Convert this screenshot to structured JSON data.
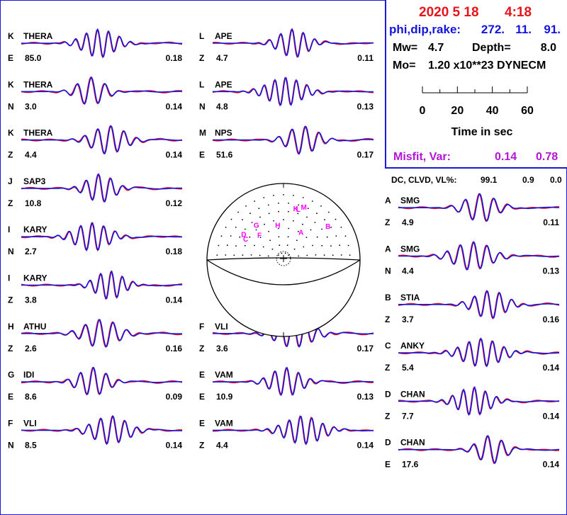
{
  "header": {
    "date": "2020  5 18",
    "time": "4:18",
    "mechanism_label": "phi,dip,rake:",
    "phi": "272.",
    "dip": "11.",
    "rake": "91.",
    "mw_label": "Mw=",
    "mw": "4.7",
    "depth_label": "Depth=",
    "depth": "8.0",
    "mo_label": "Mo=",
    "mo": "1.20 x10**23 DYNECM",
    "time_axis_label": "Time  in sec",
    "time_ticks": [
      "0",
      "20",
      "40",
      "60"
    ],
    "misfit_label": "Misfit, Var:",
    "misfit": "0.14",
    "var": "0.78",
    "dc_label": "DC, CLVD, VL%:",
    "dc": "99.1",
    "clvd": "0.9",
    "vl": "0.0"
  },
  "colors": {
    "observed": "#e8141c",
    "synthetic": "#1414e0",
    "date": "#e8141c",
    "mech": "#1414e0",
    "misfit": "#b414d8",
    "station_marker": "#ff00ff"
  },
  "traces": [
    {
      "code": "K",
      "station": "THERA",
      "comp": "E",
      "distance": "85.0",
      "amp": "0.18",
      "col": 0,
      "row": 0
    },
    {
      "code": "K",
      "station": "THERA",
      "comp": "N",
      "distance": "3.0",
      "amp": "0.14",
      "col": 0,
      "row": 1
    },
    {
      "code": "K",
      "station": "THERA",
      "comp": "Z",
      "distance": "4.4",
      "amp": "0.14",
      "col": 0,
      "row": 2
    },
    {
      "code": "J",
      "station": "SAP3",
      "comp": "Z",
      "distance": "10.8",
      "amp": "0.12",
      "col": 0,
      "row": 3
    },
    {
      "code": "I",
      "station": "KARY",
      "comp": "N",
      "distance": "2.7",
      "amp": "0.18",
      "col": 0,
      "row": 4
    },
    {
      "code": "I",
      "station": "KARY",
      "comp": "Z",
      "distance": "3.8",
      "amp": "0.14",
      "col": 0,
      "row": 5
    },
    {
      "code": "H",
      "station": "ATHU",
      "comp": "Z",
      "distance": "2.6",
      "amp": "0.16",
      "col": 0,
      "row": 6
    },
    {
      "code": "G",
      "station": "IDI",
      "comp": "E",
      "distance": "8.6",
      "amp": "0.09",
      "col": 0,
      "row": 7
    },
    {
      "code": "F",
      "station": "VLI",
      "comp": "N",
      "distance": "8.5",
      "amp": "0.14",
      "col": 0,
      "row": 8
    },
    {
      "code": "L",
      "station": "APE",
      "comp": "Z",
      "distance": "4.7",
      "amp": "0.11",
      "col": 1,
      "row": 0
    },
    {
      "code": "L",
      "station": "APE",
      "comp": "N",
      "distance": "4.8",
      "amp": "0.13",
      "col": 1,
      "row": 1
    },
    {
      "code": "M",
      "station": "NPS",
      "comp": "E",
      "distance": "51.6",
      "amp": "0.17",
      "col": 1,
      "row": 2
    },
    {
      "code": "F",
      "station": "VLI",
      "comp": "Z",
      "distance": "3.6",
      "amp": "0.17",
      "col": 1,
      "row": 6
    },
    {
      "code": "E",
      "station": "VAM",
      "comp": "E",
      "distance": "10.9",
      "amp": "0.13",
      "col": 1,
      "row": 7
    },
    {
      "code": "E",
      "station": "VAM",
      "comp": "Z",
      "distance": "4.4",
      "amp": "0.14",
      "col": 1,
      "row": 8
    },
    {
      "code": "A",
      "station": "SMG",
      "comp": "Z",
      "distance": "4.9",
      "amp": "0.11",
      "col": 2,
      "row": 3.4
    },
    {
      "code": "A",
      "station": "SMG",
      "comp": "N",
      "distance": "4.4",
      "amp": "0.13",
      "col": 2,
      "row": 4.4
    },
    {
      "code": "B",
      "station": "STIA",
      "comp": "Z",
      "distance": "3.7",
      "amp": "0.16",
      "col": 2,
      "row": 5.4
    },
    {
      "code": "C",
      "station": "ANKY",
      "comp": "Z",
      "distance": "5.4",
      "amp": "0.14",
      "col": 2,
      "row": 6.4
    },
    {
      "code": "D",
      "station": "CHAN",
      "comp": "Z",
      "distance": "7.7",
      "amp": "0.14",
      "col": 2,
      "row": 7.4
    },
    {
      "code": "D",
      "station": "CHAN",
      "comp": "E",
      "distance": "17.6",
      "amp": "0.14",
      "col": 2,
      "row": 8.4
    }
  ],
  "beachball_stations": [
    {
      "label": "M",
      "az": 22,
      "r": 0.71
    },
    {
      "label": "L",
      "az": 17,
      "r": 0.66
    },
    {
      "label": "K",
      "az": 14,
      "r": 0.66
    },
    {
      "label": "B",
      "az": 55,
      "r": 0.71
    },
    {
      "label": "A",
      "az": 35,
      "r": 0.4
    },
    {
      "label": "G",
      "az": -40,
      "r": 0.55
    },
    {
      "label": "H",
      "az": -10,
      "r": 0.43
    },
    {
      "label": "D",
      "az": -60,
      "r": 0.6
    },
    {
      "label": "C",
      "az": -64,
      "r": 0.55
    },
    {
      "label": "F",
      "az": -47,
      "r": 0.43
    }
  ],
  "chart_data": {
    "type": "line",
    "title": "2020  5 18    4:18",
    "xlabel": "Time  in sec",
    "xlim": [
      0,
      60
    ],
    "x_ticks": [
      0,
      20,
      40,
      60
    ],
    "series": [],
    "grid": false,
    "legend": "none"
  }
}
